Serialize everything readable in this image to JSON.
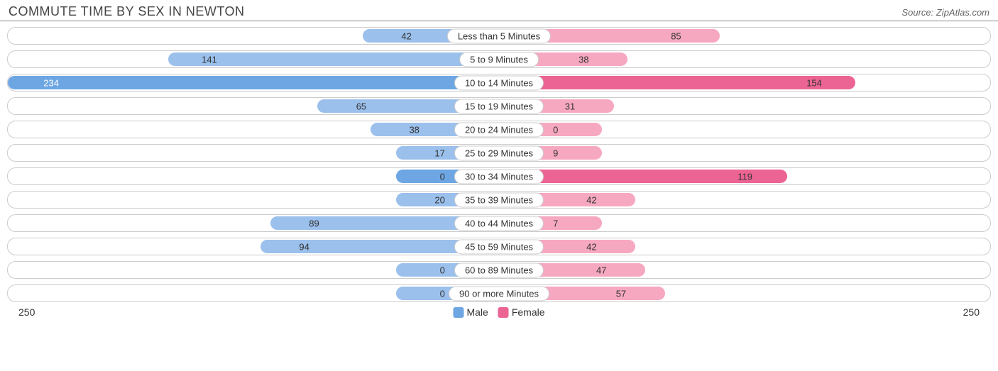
{
  "title": "COMMUTE TIME BY SEX IN NEWTON",
  "source": "Source: ZipAtlas.com",
  "chart": {
    "type": "diverging-bar",
    "max_value": 250,
    "axis_label_left": "250",
    "axis_label_right": "250",
    "background_color": "#ffffff",
    "row_border_color": "#cccccc",
    "text_color": "#333333",
    "bar_radius": 10,
    "series": {
      "male": {
        "color_light": "#9bc0ec",
        "color_dark": "#6da6e3",
        "label": "Male"
      },
      "female": {
        "color_light": "#f7a8c1",
        "color_dark": "#ec6493",
        "label": "Female"
      }
    },
    "rows": [
      {
        "category": "Less than 5 Minutes",
        "male": 42,
        "female": 85,
        "highlight": false
      },
      {
        "category": "5 to 9 Minutes",
        "male": 141,
        "female": 38,
        "highlight": false
      },
      {
        "category": "10 to 14 Minutes",
        "male": 234,
        "female": 154,
        "highlight": true
      },
      {
        "category": "15 to 19 Minutes",
        "male": 65,
        "female": 31,
        "highlight": false
      },
      {
        "category": "20 to 24 Minutes",
        "male": 38,
        "female": 0,
        "highlight": false
      },
      {
        "category": "25 to 29 Minutes",
        "male": 17,
        "female": 9,
        "highlight": false
      },
      {
        "category": "30 to 34 Minutes",
        "male": 0,
        "female": 119,
        "highlight": true
      },
      {
        "category": "35 to 39 Minutes",
        "male": 20,
        "female": 42,
        "highlight": false
      },
      {
        "category": "40 to 44 Minutes",
        "male": 89,
        "female": 7,
        "highlight": false
      },
      {
        "category": "45 to 59 Minutes",
        "male": 94,
        "female": 42,
        "highlight": false
      },
      {
        "category": "60 to 89 Minutes",
        "male": 0,
        "female": 47,
        "highlight": false
      },
      {
        "category": "90 or more Minutes",
        "male": 0,
        "female": 57,
        "highlight": false
      }
    ],
    "min_bar_pct": 10,
    "center_label_half_width_pct": 11,
    "inside_threshold_pct": 75
  }
}
